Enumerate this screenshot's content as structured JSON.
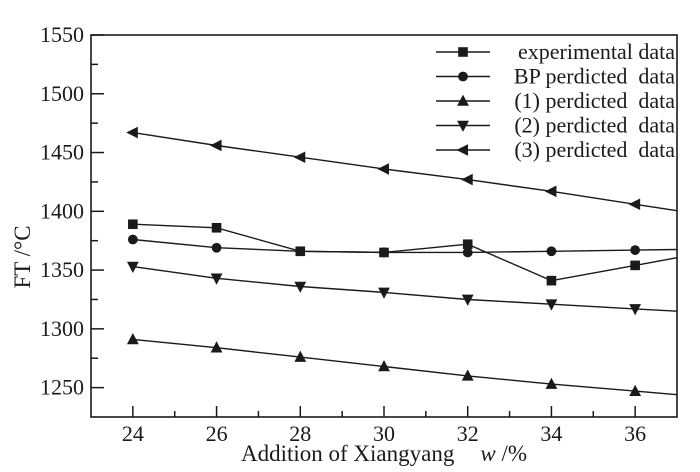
{
  "figure": {
    "background": "#ffffff",
    "ink_color": "#1a1a1a"
  },
  "chart_data": {
    "type": "line",
    "title": "",
    "xlabel": "Addition of Xiangyang",
    "xlabel_symbol": "w",
    "xlabel_unit": " /%",
    "ylabel": "FT /°C",
    "xlim": [
      23,
      37
    ],
    "ylim": [
      1225,
      1550
    ],
    "grid": false,
    "legend_position": "top-right-inside",
    "x": [
      24,
      26,
      28,
      30,
      32,
      34,
      36
    ],
    "x_major_ticks": [
      24,
      26,
      28,
      30,
      32,
      34,
      36
    ],
    "x_minor_ticks": [
      25,
      27,
      29,
      31,
      33,
      35
    ],
    "x_tick_labels": [
      "24",
      "26",
      "28",
      "30",
      "32",
      "34",
      "36"
    ],
    "y_major_ticks": [
      1250,
      1300,
      1350,
      1400,
      1450,
      1500,
      1550
    ],
    "y_minor_ticks": [
      1275,
      1325,
      1375,
      1425,
      1475,
      1525
    ],
    "y_tick_labels": [
      "1250",
      "1300",
      "1350",
      "1400",
      "1450",
      "1500",
      "1550"
    ],
    "series": [
      {
        "name": "experimental data",
        "marker": "square",
        "values": [
          1389,
          1386,
          1366,
          1365,
          1372,
          1341,
          1354
        ]
      },
      {
        "name": "BP perdicted  data",
        "marker": "circle",
        "values": [
          1376,
          1369,
          1366,
          1365,
          1365,
          1366,
          1367
        ]
      },
      {
        "name": "(1) perdicted  data",
        "marker": "triangle-up",
        "values": [
          1291,
          1284,
          1276,
          1268,
          1260,
          1253,
          1247
        ]
      },
      {
        "name": "(2) perdicted  data",
        "marker": "triangle-down",
        "values": [
          1353,
          1343,
          1336,
          1331,
          1325,
          1321,
          1317
        ]
      },
      {
        "name": "(3) perdicted  data",
        "marker": "triangle-left",
        "values": [
          1467,
          1456,
          1446,
          1436,
          1427,
          1417,
          1406
        ]
      }
    ]
  }
}
